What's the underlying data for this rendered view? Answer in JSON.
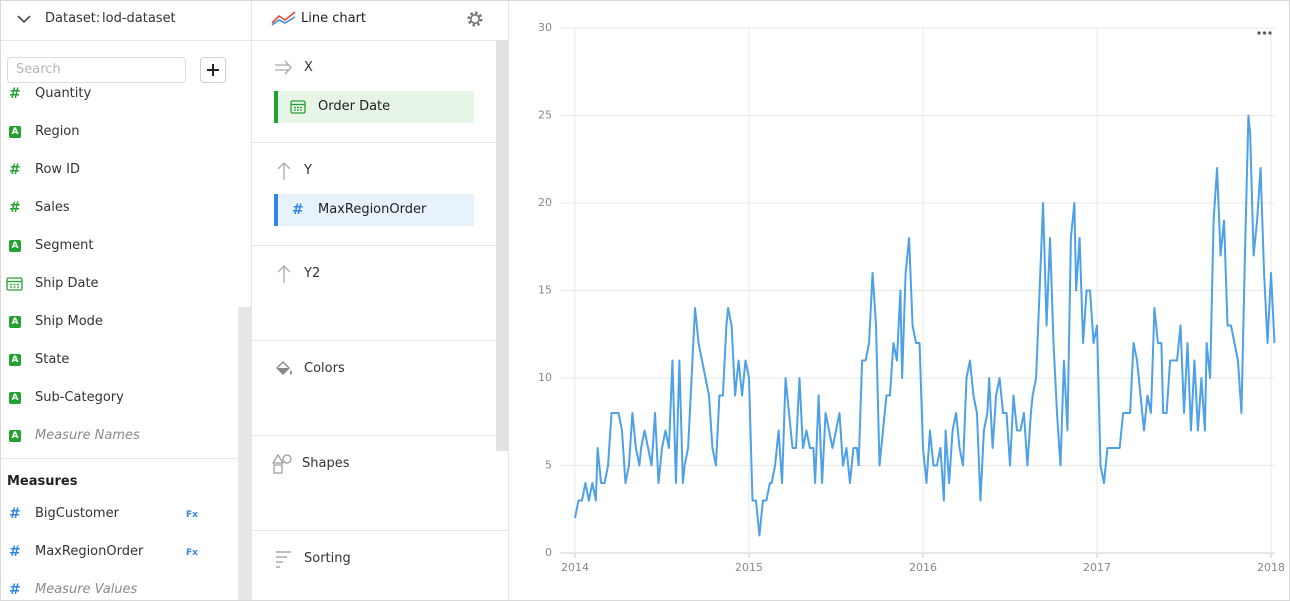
{
  "dataset": {
    "label": "Dataset:",
    "name": "lod-dataset"
  },
  "search": {
    "placeholder": "Search"
  },
  "icons": {
    "number": "#",
    "string": "A",
    "formula": "Fx"
  },
  "fields": [
    {
      "name": "Quantity",
      "kind": "number"
    },
    {
      "name": "Region",
      "kind": "string"
    },
    {
      "name": "Row ID",
      "kind": "number"
    },
    {
      "name": "Sales",
      "kind": "number"
    },
    {
      "name": "Segment",
      "kind": "string"
    },
    {
      "name": "Ship Date",
      "kind": "date"
    },
    {
      "name": "Ship Mode",
      "kind": "string"
    },
    {
      "name": "State",
      "kind": "string"
    },
    {
      "name": "Sub-Category",
      "kind": "string"
    },
    {
      "name": "Measure Names",
      "kind": "string",
      "virtual": true
    }
  ],
  "measures": {
    "title": "Measures",
    "items": [
      {
        "name": "BigCustomer",
        "kind": "number",
        "formula": true
      },
      {
        "name": "MaxRegionOrder",
        "kind": "number",
        "formula": true
      },
      {
        "name": "Measure Values",
        "kind": "number",
        "virtual": true
      }
    ]
  },
  "wizard": {
    "chart_type": "Line chart",
    "sections": [
      {
        "title": "X",
        "items": [
          "Order Date"
        ]
      },
      {
        "title": "Y",
        "items": [
          "MaxRegionOrder"
        ]
      },
      {
        "title": "Y2"
      },
      {
        "title": "Colors"
      },
      {
        "title": "Shapes"
      },
      {
        "title": "Sorting"
      }
    ]
  },
  "chart_data": {
    "type": "line",
    "color": "#4ea1e6",
    "grid": true,
    "xlim": [
      2014,
      2018.02
    ],
    "xticks": [
      2014,
      2015,
      2016,
      2017,
      2018
    ],
    "ylim": [
      0,
      30
    ],
    "yticks": [
      0,
      5,
      10,
      15,
      20,
      25,
      30
    ],
    "x": [
      2014.0,
      2014.02,
      2014.04,
      2014.06,
      2014.08,
      2014.1,
      2014.12,
      2014.13,
      2014.15,
      2014.17,
      2014.19,
      2014.21,
      2014.23,
      2014.25,
      2014.27,
      2014.29,
      2014.31,
      2014.33,
      2014.35,
      2014.37,
      2014.38,
      2014.4,
      2014.42,
      2014.44,
      2014.46,
      2014.48,
      2014.5,
      2014.52,
      2014.54,
      2014.56,
      2014.58,
      2014.6,
      2014.62,
      2014.63,
      2014.65,
      2014.67,
      2014.69,
      2014.71,
      2014.73,
      2014.75,
      2014.77,
      2014.79,
      2014.81,
      2014.83,
      2014.85,
      2014.87,
      2014.88,
      2014.9,
      2014.92,
      2014.94,
      2014.96,
      2014.98,
      2015.0,
      2015.02,
      2015.04,
      2015.06,
      2015.08,
      2015.1,
      2015.12,
      2015.13,
      2015.15,
      2015.17,
      2015.19,
      2015.21,
      2015.23,
      2015.25,
      2015.27,
      2015.29,
      2015.31,
      2015.33,
      2015.35,
      2015.37,
      2015.38,
      2015.4,
      2015.42,
      2015.44,
      2015.46,
      2015.48,
      2015.5,
      2015.52,
      2015.54,
      2015.56,
      2015.58,
      2015.6,
      2015.62,
      2015.63,
      2015.65,
      2015.67,
      2015.69,
      2015.71,
      2015.73,
      2015.75,
      2015.77,
      2015.79,
      2015.81,
      2015.83,
      2015.85,
      2015.87,
      2015.88,
      2015.9,
      2015.92,
      2015.94,
      2015.96,
      2015.98,
      2016.0,
      2016.02,
      2016.04,
      2016.06,
      2016.08,
      2016.1,
      2016.12,
      2016.13,
      2016.15,
      2016.17,
      2016.19,
      2016.21,
      2016.23,
      2016.25,
      2016.27,
      2016.29,
      2016.31,
      2016.33,
      2016.35,
      2016.37,
      2016.38,
      2016.4,
      2016.42,
      2016.44,
      2016.46,
      2016.48,
      2016.5,
      2016.52,
      2016.54,
      2016.56,
      2016.58,
      2016.6,
      2016.62,
      2016.63,
      2016.65,
      2016.67,
      2016.69,
      2016.71,
      2016.73,
      2016.75,
      2016.77,
      2016.79,
      2016.81,
      2016.83,
      2016.85,
      2016.87,
      2016.88,
      2016.9,
      2016.92,
      2016.94,
      2016.96,
      2016.98,
      2017.0,
      2017.02,
      2017.04,
      2017.06,
      2017.08,
      2017.1,
      2017.12,
      2017.13,
      2017.15,
      2017.17,
      2017.19,
      2017.21,
      2017.23,
      2017.25,
      2017.27,
      2017.29,
      2017.31,
      2017.33,
      2017.35,
      2017.37,
      2017.38,
      2017.4,
      2017.42,
      2017.44,
      2017.46,
      2017.48,
      2017.5,
      2017.52,
      2017.54,
      2017.56,
      2017.58,
      2017.6,
      2017.62,
      2017.63,
      2017.65,
      2017.67,
      2017.69,
      2017.71,
      2017.73,
      2017.75,
      2017.77,
      2017.79,
      2017.81,
      2017.83,
      2017.85,
      2017.87,
      2017.88,
      2017.9,
      2017.92,
      2017.94,
      2017.96,
      2017.98,
      2018.0,
      2018.02
    ],
    "values": [
      2,
      3,
      3,
      4,
      3,
      4,
      3,
      6,
      4,
      4,
      5,
      8,
      8,
      8,
      7,
      4,
      5,
      8,
      6,
      5,
      6,
      7,
      6,
      5,
      8,
      4,
      6,
      7,
      6,
      11,
      4,
      11,
      4,
      5,
      6,
      10,
      14,
      12,
      11,
      10,
      9,
      6,
      5,
      9,
      9,
      13,
      14,
      13,
      9,
      11,
      9,
      11,
      10,
      3,
      3,
      1,
      3,
      3,
      4,
      4,
      5,
      7,
      4,
      10,
      8,
      6,
      6,
      10,
      6,
      7,
      6,
      6,
      4,
      9,
      4,
      8,
      7,
      6,
      7,
      8,
      5,
      6,
      4,
      6,
      6,
      5,
      11,
      11,
      12,
      16,
      13,
      5,
      7,
      9,
      9,
      12,
      11,
      15,
      10,
      16,
      18,
      13,
      12,
      12,
      6,
      4,
      7,
      5,
      5,
      6,
      3,
      7,
      4,
      7,
      8,
      6,
      5,
      10,
      11,
      9,
      8,
      3,
      7,
      8,
      10,
      6,
      9,
      10,
      8,
      8,
      5,
      9,
      7,
      7,
      8,
      5,
      8,
      9,
      10,
      15,
      20,
      13,
      18,
      12,
      8,
      5,
      11,
      7,
      18,
      20,
      15,
      18,
      12,
      15,
      15,
      12,
      13,
      5,
      4,
      6,
      6,
      6,
      6,
      6,
      8,
      8,
      8,
      12,
      11,
      9,
      7,
      9,
      8,
      14,
      12,
      12,
      8,
      8,
      11,
      11,
      11,
      13,
      8,
      12,
      7,
      11,
      7,
      10,
      7,
      12,
      10,
      19,
      22,
      17,
      19,
      13,
      13,
      12,
      11,
      8,
      17,
      25,
      24,
      17,
      19,
      22,
      16,
      12,
      16,
      12
    ]
  }
}
